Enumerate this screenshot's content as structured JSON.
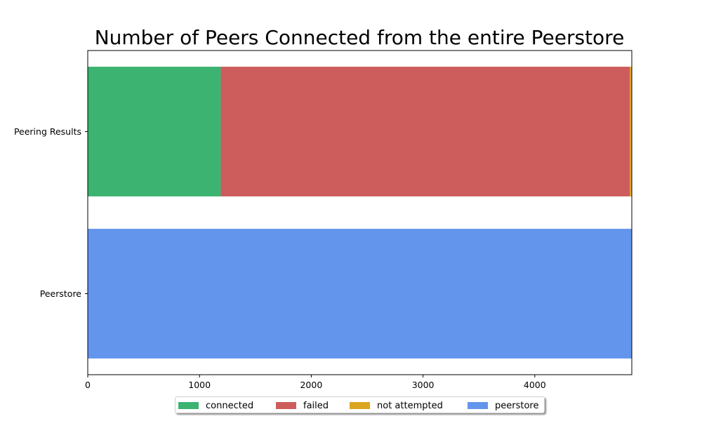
{
  "chart_data": {
    "type": "bar",
    "orientation": "horizontal",
    "stacked": true,
    "title": "Number of Peers Connected from the entire Peerstore",
    "xlabel": "",
    "ylabel": "",
    "categories": [
      "Peerstore",
      "Peering Results"
    ],
    "series": [
      {
        "name": "connected",
        "color": "#3cb371",
        "values": [
          0,
          1190
        ]
      },
      {
        "name": "failed",
        "color": "#cd5c5c",
        "values": [
          0,
          3660
        ]
      },
      {
        "name": "not attempted",
        "color": "#daa520",
        "values": [
          0,
          18
        ]
      },
      {
        "name": "peerstore",
        "color": "#6495ed",
        "values": [
          4868,
          0
        ]
      }
    ],
    "xlim": [
      0,
      4868
    ],
    "xticks": [
      0,
      1000,
      2000,
      3000,
      4000
    ],
    "xtick_labels": [
      "0",
      "1000",
      "2000",
      "3000",
      "4000"
    ],
    "grid": false,
    "legend_position": "bottom-center"
  }
}
